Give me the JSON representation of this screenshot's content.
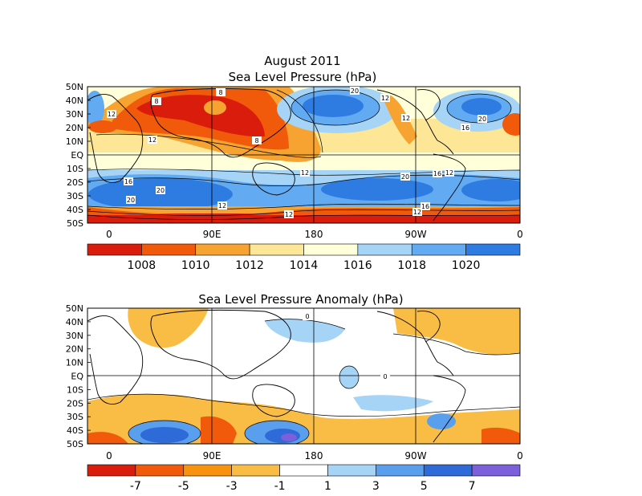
{
  "top_panel": {
    "title_line1": "August 2011",
    "title_line2": "Sea Level Pressure (hPa)",
    "lat_labels": [
      "50N",
      "40N",
      "30N",
      "20N",
      "10N",
      "EQ",
      "10S",
      "20S",
      "30S",
      "40S",
      "50S"
    ],
    "lon_labels": [
      "0",
      "90E",
      "180",
      "90W",
      "0"
    ],
    "contour_labels": [
      "8",
      "8",
      "12",
      "12",
      "8",
      "12",
      "20",
      "12",
      "12",
      "20",
      "16",
      "12",
      "16",
      "20",
      "12",
      "16",
      "20",
      "12",
      "12",
      "16",
      "20"
    ],
    "colorbar": {
      "colors": [
        "#d91c0c",
        "#f05a0a",
        "#f7a331",
        "#fde695",
        "#ffffda",
        "#a6d4f7",
        "#62aaf1",
        "#2e7ce2"
      ],
      "labels": [
        "1008",
        "1010",
        "1012",
        "1014",
        "1016",
        "1018",
        "1020"
      ]
    }
  },
  "bottom_panel": {
    "title": "Sea Level Pressure Anomaly (hPa)",
    "lat_labels": [
      "50N",
      "40N",
      "30N",
      "20N",
      "10N",
      "EQ",
      "10S",
      "20S",
      "30S",
      "40S",
      "50S"
    ],
    "lon_labels": [
      "0",
      "90E",
      "180",
      "90W",
      "0"
    ],
    "contour_labels": [
      "0",
      "0"
    ],
    "colorbar": {
      "colors": [
        "#d91c0c",
        "#f05a0a",
        "#f7930f",
        "#f9bc45",
        "#ffffff",
        "#a6d4f7",
        "#5a9fee",
        "#2e6ad8",
        "#7b5fdb"
      ],
      "labels": [
        "-7",
        "-5",
        "-3",
        "-1",
        "1",
        "3",
        "5",
        "7"
      ]
    }
  }
}
